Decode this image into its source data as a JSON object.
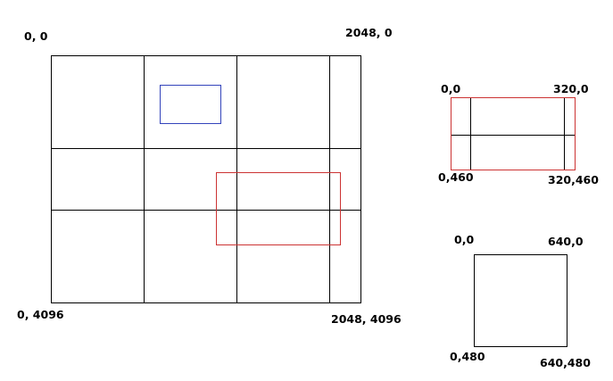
{
  "colors": {
    "line": "#000000",
    "blue_box": "#3344bb",
    "red_box": "#cc3333",
    "background": "#ffffff"
  },
  "big_grid": {
    "corner_top_left": "0, 0",
    "corner_top_right": "2048, 0",
    "corner_bottom_left": "0, 4096",
    "corner_bottom_right": "2048, 4096"
  },
  "red_panel": {
    "corner_top_left": "0,0",
    "corner_top_right": "320,0",
    "corner_bottom_left": "0,460",
    "corner_bottom_right": "320,460"
  },
  "square_panel": {
    "corner_top_left": "0,0",
    "corner_top_right": "640,0",
    "corner_bottom_left": "0,480",
    "corner_bottom_right": "640,480"
  }
}
